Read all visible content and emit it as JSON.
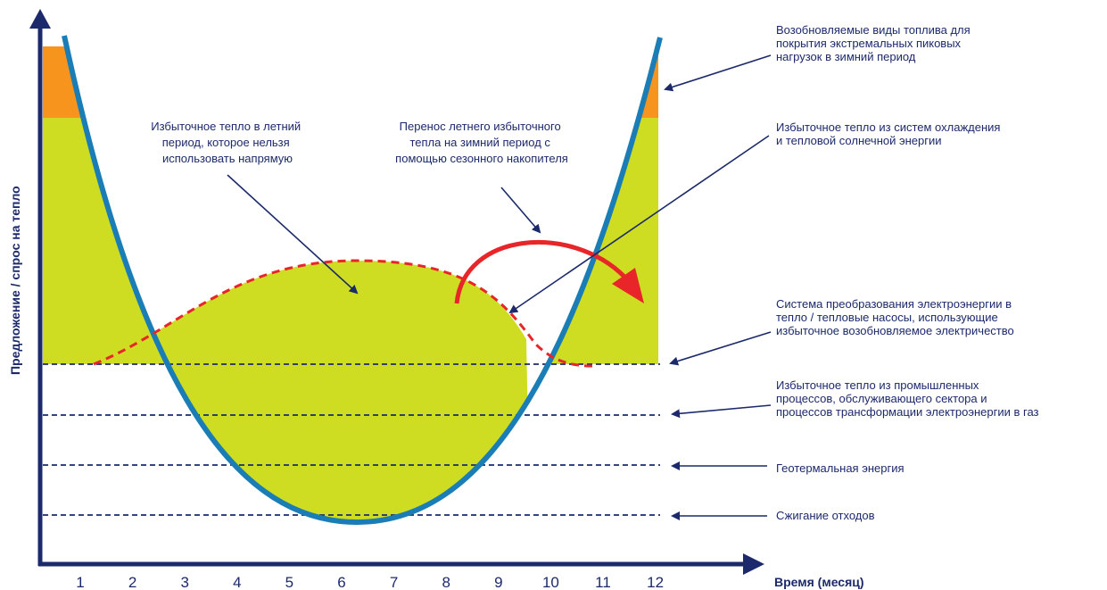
{
  "y_axis_label": "Предложение / спрос на тепло",
  "x_axis_label": "Время (месяц)",
  "months": [
    "1",
    "2",
    "3",
    "4",
    "5",
    "6",
    "7",
    "8",
    "9",
    "10",
    "11",
    "12"
  ],
  "center_labels": {
    "summer_surplus": [
      "Избыточное тепло в летний",
      "период, которое нельзя",
      "использовать напрямую"
    ],
    "seasonal_storage": [
      "Перенос летнего избыточного",
      "тепла на зимний период с",
      "помощью сезонного накопителя"
    ]
  },
  "side_labels": {
    "renewable_fuels": [
      "Возобновляемые виды топлива для",
      "покрытия экстремальных пиковых",
      "нагрузок в зимний период"
    ],
    "cooling_solar": [
      "Избыточное тепло из систем охлаждения",
      "и тепловой солнечной энергии"
    ],
    "power_to_heat": [
      "Система преобразования электроэнергии в",
      "тепло / тепловые насосы, использующие",
      "избыточное возобновляемое электричество"
    ],
    "industrial": [
      "Избыточное тепло из промышленных",
      "процессов, обслуживающего сектора и",
      "процессов трансформации электроэнергии в газ"
    ],
    "geothermal": "Геотермальная энергия",
    "waste": "Сжигание отходов"
  }
}
